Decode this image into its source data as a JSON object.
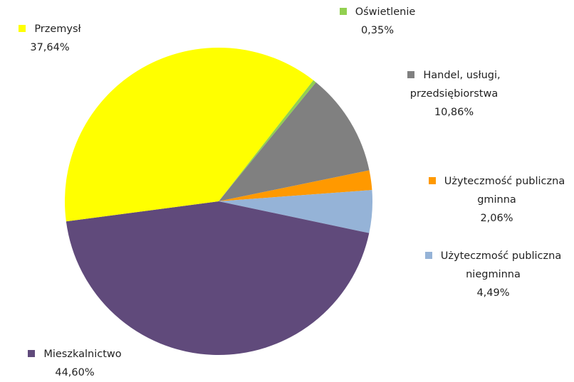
{
  "chart_data": {
    "type": "pie",
    "categories": [
      "Oświetlenie",
      "Handel, usługi, przedsiębiorstwa",
      "Użyteczmość publiczna gminna",
      "Użyteczmość publiczna niegminna",
      "Mieszkalnictwo",
      "Przemysł"
    ],
    "values": [
      0.35,
      10.86,
      2.06,
      4.49,
      44.6,
      37.64
    ],
    "value_labels": [
      "0,35%",
      "10,86%",
      "2,06%",
      "4,49%",
      "44,60%",
      "37,64%"
    ],
    "colors": [
      "#92d050",
      "#808080",
      "#ff9900",
      "#95b3d7",
      "#604a7b",
      "#ffff00"
    ]
  }
}
